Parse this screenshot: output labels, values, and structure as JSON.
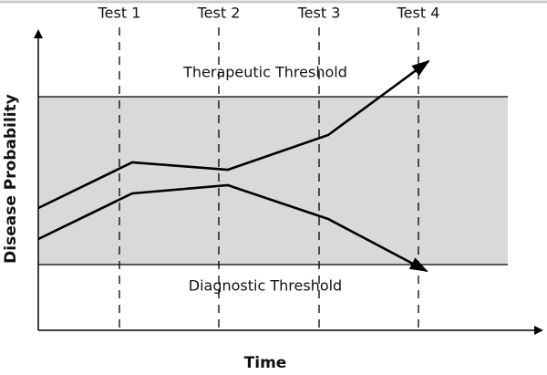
{
  "tests": [
    "Test 1",
    "Test 2",
    "Test 3",
    "Test 4"
  ],
  "thresholds": {
    "therapeutic": "Therapeutic Threshold",
    "diagnostic": "Diagnostic Threshold"
  },
  "axes": {
    "x": "Time",
    "y": "Disease Probability"
  }
}
